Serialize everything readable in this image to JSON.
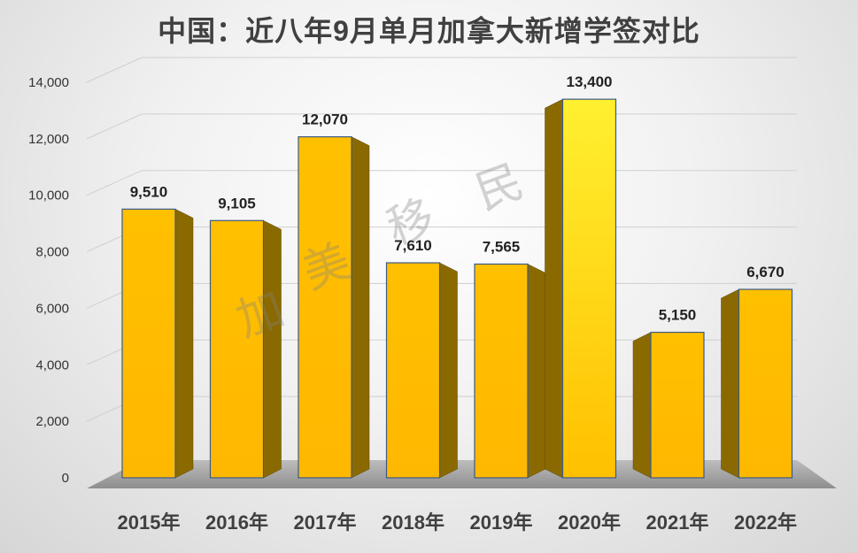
{
  "chart_data": {
    "type": "bar",
    "title": "中国：近八年9月单月加拿大新增学签对比",
    "categories": [
      "2015年",
      "2016年",
      "2017年",
      "2018年",
      "2019年",
      "2020年",
      "2021年",
      "2022年"
    ],
    "values": [
      9510,
      9105,
      12070,
      7610,
      7565,
      13400,
      5150,
      6670
    ],
    "value_labels": [
      "9,510",
      "9,105",
      "12,070",
      "7,610",
      "7,565",
      "13,400",
      "5,150",
      "6,670"
    ],
    "ylim": [
      0,
      14000
    ],
    "yticks": [
      0,
      2000,
      4000,
      6000,
      8000,
      10000,
      12000,
      14000
    ],
    "ytick_labels": [
      "0",
      "2,000",
      "4,000",
      "6,000",
      "8,000",
      "10,000",
      "12,000",
      "14,000"
    ],
    "xlabel": "",
    "ylabel": "",
    "grid": true,
    "legend": "none",
    "bar_color": "#FFC000",
    "bar_color_highlight": "#FFE030",
    "side_color": "#8A6A00"
  },
  "watermark": [
    "加",
    "美",
    "移",
    "民"
  ]
}
